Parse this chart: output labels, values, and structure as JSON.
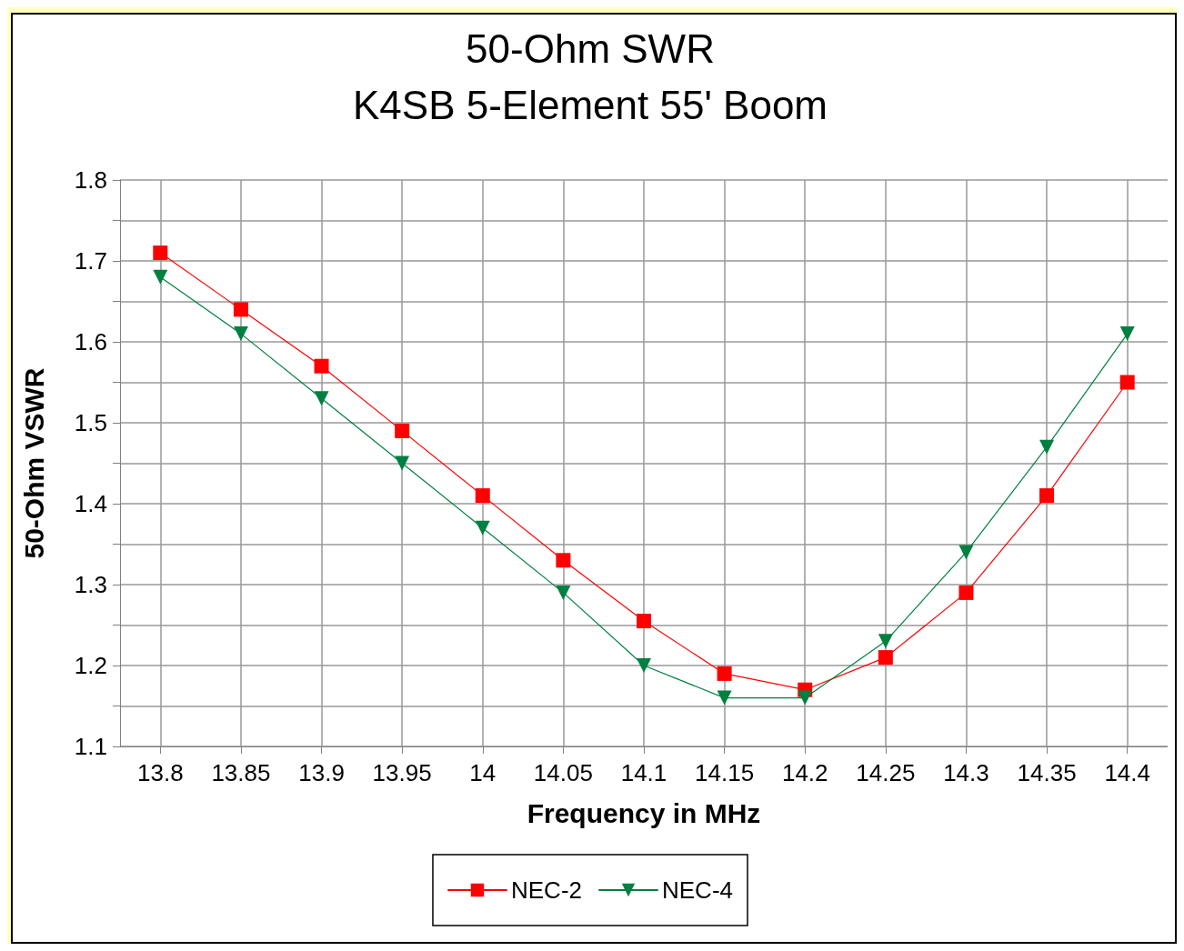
{
  "chart_data": {
    "type": "line",
    "title": "50-Ohm SWR",
    "subtitle": "K4SB 5-Element 55' Boom",
    "xlabel": "Frequency in MHz",
    "ylabel": "50-Ohm VSWR",
    "x": [
      13.8,
      13.85,
      13.9,
      13.95,
      14,
      14.05,
      14.1,
      14.15,
      14.2,
      14.25,
      14.3,
      14.35,
      14.4
    ],
    "series": [
      {
        "name": "NEC-2",
        "color": "#ff0000",
        "marker": "square",
        "values": [
          1.71,
          1.64,
          1.57,
          1.49,
          1.41,
          1.33,
          1.255,
          1.19,
          1.17,
          1.21,
          1.29,
          1.41,
          1.55
        ]
      },
      {
        "name": "NEC-4",
        "color": "#008040",
        "marker": "triangle",
        "values": [
          1.68,
          1.61,
          1.53,
          1.45,
          1.37,
          1.29,
          1.2,
          1.16,
          1.16,
          1.23,
          1.34,
          1.47,
          1.61
        ]
      }
    ],
    "xlim": [
      13.775,
      14.425
    ],
    "xticks": [
      13.8,
      13.85,
      13.9,
      13.95,
      14,
      14.05,
      14.1,
      14.15,
      14.2,
      14.25,
      14.3,
      14.35,
      14.4
    ],
    "ylim": [
      1.1,
      1.8
    ],
    "yticks": [
      1.1,
      {
        "value": 1.15,
        "label": null
      },
      1.2,
      {
        "value": 1.25,
        "label": null
      },
      1.3,
      {
        "value": 1.35,
        "label": null
      },
      1.4,
      {
        "value": 1.45,
        "label": null
      },
      1.5,
      {
        "value": 1.55,
        "label": null
      },
      1.6,
      {
        "value": 1.65,
        "label": null
      },
      1.7,
      {
        "value": 1.75,
        "label": null
      },
      1.8
    ],
    "grid": true,
    "legend": "bottom",
    "line_style": "solid"
  }
}
